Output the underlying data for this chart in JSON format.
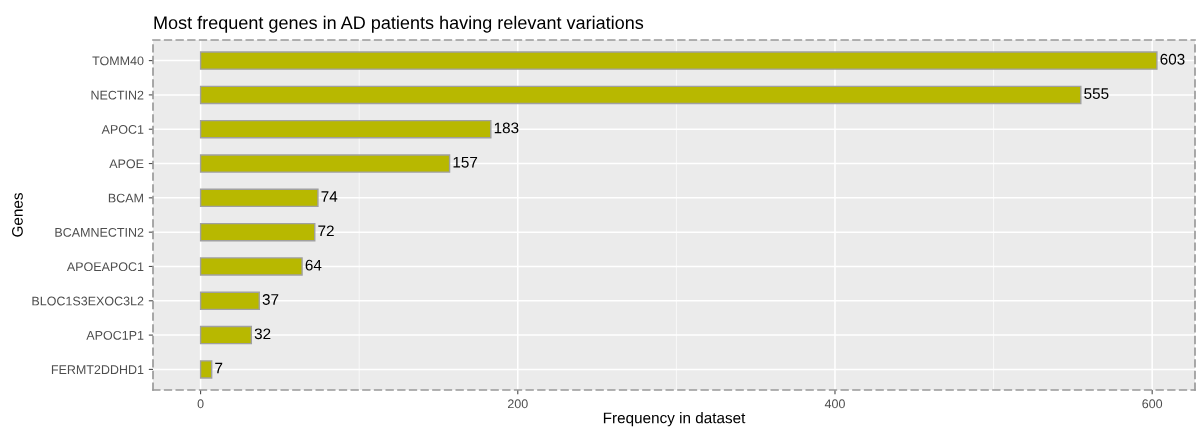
{
  "chart_data": {
    "type": "bar",
    "orientation": "horizontal",
    "title": "Most frequent genes in AD patients having relevant variations",
    "xlabel": "Frequency in dataset",
    "ylabel": "Genes",
    "categories": [
      "TOMM40",
      "NECTIN2",
      "APOC1",
      "APOE",
      "BCAM",
      "BCAMNECTIN2",
      "APOEAPOC1",
      "BLOC1S3EXOC3L2",
      "APOC1P1",
      "FERMT2DDHD1"
    ],
    "values": [
      603,
      555,
      183,
      157,
      74,
      72,
      64,
      37,
      32,
      7
    ],
    "color": "#b8b800",
    "xlim": [
      -30,
      627
    ],
    "xticks": [
      0,
      200,
      400,
      600
    ],
    "grid": true,
    "data_labels": true
  }
}
